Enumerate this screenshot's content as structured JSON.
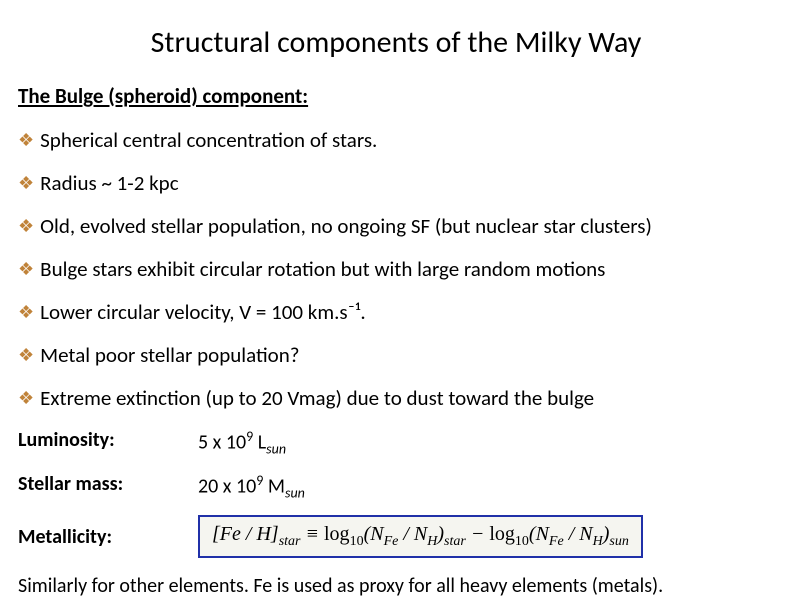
{
  "title": "Structural components of the Milky Way",
  "subtitle": "The Bulge (spheroid) component:",
  "bullets": [
    "Spherical central concentration of stars.",
    "Radius ~ 1-2 kpc",
    "Old, evolved stellar population, no ongoing SF (but nuclear star clusters)",
    "Bulge stars exhibit circular rotation but with large random motions",
    "Lower circular velocity, V = 100 km.s⁻¹.",
    "Metal poor stellar population?",
    "Extreme extinction (up to 20 Vmag) due to dust toward the bulge"
  ],
  "props": {
    "luminosity_label": "Luminosity:",
    "luminosity_value_html": "5 x 10<sup>9</sup> L<sub>sun</sub>",
    "mass_label": "Stellar mass:",
    "mass_value_html": "20 x 10<sup>9</sup> M<sub>sun</sub>",
    "metallicity_label": "Metallicity:",
    "formula_html": "[<span>Fe</span> / <span>H</span>]<sub>star</sub> ≡ <span class='rm'>log</span><sub class='rm'>10</sub>(<span>N</span><sub>Fe</sub> / <span>N</span><sub>H</sub>)<sub>star</sub> − <span class='rm'>log</span><sub class='rm'>10</sub>(<span>N</span><sub>Fe</sub> / <span>N</span><sub>H</sub>)<sub>sun</sub>"
  },
  "footer": "Similarly for other elements. Fe is used as proxy for all heavy elements (metals).",
  "colors": {
    "bullet": "#c0833a",
    "formula_border": "#2030a8",
    "formula_bg": "#f5f5f0",
    "text": "#000000",
    "background": "#ffffff"
  },
  "fonts": {
    "title_size": 30,
    "subtitle_size": 21,
    "body_size": 21,
    "prop_size": 20
  }
}
